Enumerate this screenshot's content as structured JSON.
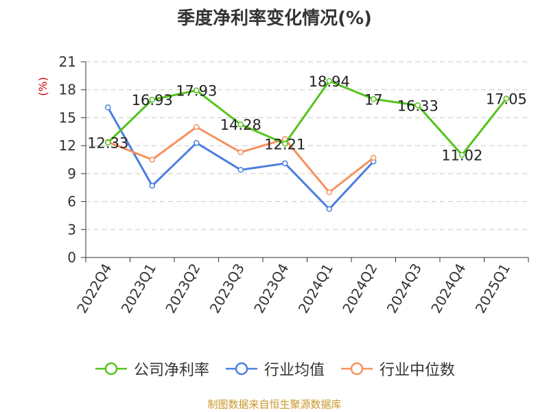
{
  "chart_data": {
    "type": "line",
    "title": "季度净利率变化情况(%)",
    "ylabel": "(%)",
    "categories": [
      "2022Q4",
      "2023Q1",
      "2023Q2",
      "2023Q3",
      "2023Q4",
      "2024Q1",
      "2024Q2",
      "2024Q3",
      "2024Q4",
      "2025Q1"
    ],
    "ylim": [
      0,
      21
    ],
    "yticks": [
      0,
      3,
      6,
      9,
      12,
      15,
      18,
      21
    ],
    "grid": true,
    "legend_position": "bottom",
    "series": [
      {
        "name": "公司净利率",
        "color": "#52c41a",
        "values": [
          12.33,
          16.93,
          17.93,
          14.28,
          12.21,
          18.94,
          17,
          16.33,
          11.02,
          17.05
        ],
        "labels": [
          "12.33",
          "16.93",
          "17.93",
          "14.28",
          "12.21",
          "18.94",
          "17",
          "16.33",
          "11.02",
          "17.05"
        ]
      },
      {
        "name": "行业均值",
        "color": "#4a7ee0",
        "values": [
          16.1,
          7.7,
          12.3,
          9.4,
          10.1,
          5.2,
          10.3,
          null,
          null,
          null
        ]
      },
      {
        "name": "行业中位数",
        "color": "#f7905c",
        "values": [
          12.4,
          10.5,
          14.0,
          11.3,
          12.7,
          7.0,
          10.7,
          null,
          null,
          null
        ]
      }
    ]
  },
  "footer": {
    "source": "制图数据来自恒生聚源数据库"
  }
}
